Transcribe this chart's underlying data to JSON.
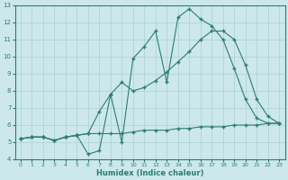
{
  "background_color": "#cce8ea",
  "grid_color": "#b0d4d8",
  "line_color": "#2d7d72",
  "xlabel": "Humidex (Indice chaleur)",
  "xlim": [
    -0.5,
    23.5
  ],
  "ylim": [
    4,
    13
  ],
  "yticks": [
    4,
    5,
    6,
    7,
    8,
    9,
    10,
    11,
    12,
    13
  ],
  "xticks": [
    0,
    1,
    2,
    3,
    4,
    5,
    6,
    7,
    8,
    9,
    10,
    11,
    12,
    13,
    14,
    15,
    16,
    17,
    18,
    19,
    20,
    21,
    22,
    23
  ],
  "line1_x": [
    0,
    1,
    2,
    3,
    4,
    5,
    6,
    7,
    8,
    9,
    10,
    11,
    12,
    13,
    14,
    15,
    16,
    17,
    18,
    19,
    20,
    21,
    22,
    23
  ],
  "line1_y": [
    5.2,
    5.3,
    5.3,
    5.1,
    5.3,
    5.4,
    5.5,
    5.5,
    5.5,
    5.5,
    5.6,
    5.7,
    5.7,
    5.7,
    5.8,
    5.8,
    5.9,
    5.9,
    5.9,
    6.0,
    6.0,
    6.0,
    6.1,
    6.1
  ],
  "line2_x": [
    0,
    1,
    2,
    3,
    4,
    5,
    6,
    7,
    8,
    9,
    10,
    11,
    12,
    13,
    14,
    15,
    16,
    17,
    18,
    19,
    20,
    21,
    22,
    23
  ],
  "line2_y": [
    5.2,
    5.3,
    5.3,
    5.1,
    5.3,
    5.4,
    5.5,
    6.8,
    7.8,
    8.5,
    8.0,
    8.2,
    8.6,
    9.1,
    9.7,
    10.3,
    11.0,
    11.5,
    11.5,
    11.0,
    9.5,
    7.5,
    6.5,
    6.1
  ],
  "line3_x": [
    0,
    1,
    2,
    3,
    4,
    5,
    6,
    7,
    8,
    9,
    10,
    11,
    12,
    13,
    14,
    15,
    16,
    17,
    18,
    19,
    20,
    21,
    22,
    23
  ],
  "line3_y": [
    5.2,
    5.3,
    5.3,
    5.1,
    5.3,
    5.4,
    4.3,
    4.5,
    7.8,
    5.0,
    9.9,
    10.6,
    11.5,
    8.5,
    12.3,
    12.8,
    12.2,
    11.8,
    11.0,
    9.3,
    7.5,
    6.4,
    6.1,
    6.1
  ]
}
